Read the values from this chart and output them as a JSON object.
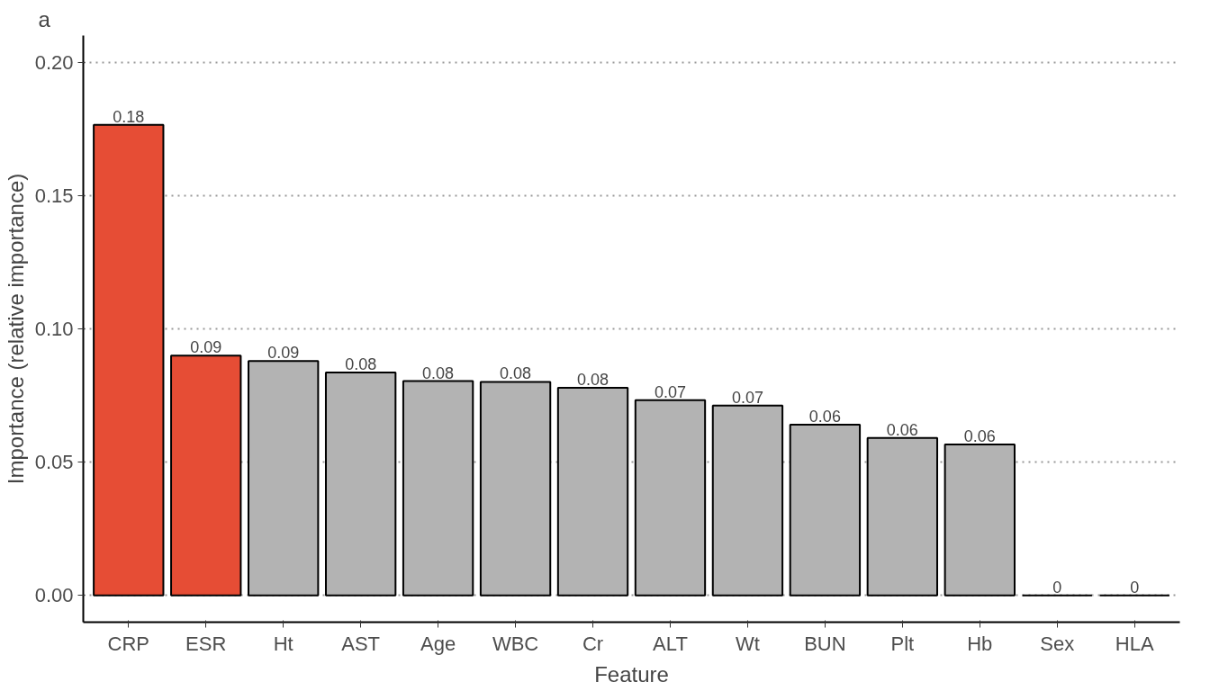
{
  "chart_data": {
    "type": "bar",
    "title": "a",
    "xlabel": "Feature",
    "ylabel": "Importance (relative importance)",
    "categories": [
      "CRP",
      "ESR",
      "Ht",
      "AST",
      "Age",
      "WBC",
      "Cr",
      "ALT",
      "Wt",
      "BUN",
      "Plt",
      "Hb",
      "Sex",
      "HLA"
    ],
    "values": [
      0.1765,
      0.09,
      0.0879,
      0.0836,
      0.0804,
      0.0801,
      0.0779,
      0.0733,
      0.0712,
      0.0641,
      0.0591,
      0.0566,
      0,
      0
    ],
    "colors": [
      "#e64d35",
      "#e64d35",
      "#b3b3b3",
      "#b3b3b3",
      "#b3b3b3",
      "#b3b3b3",
      "#b3b3b3",
      "#b3b3b3",
      "#b3b3b3",
      "#b3b3b3",
      "#b3b3b3",
      "#b3b3b3",
      "#000000",
      "#000000"
    ],
    "value_labels": [
      "0.18",
      "0.09",
      "0.09",
      "0.08",
      "0.08",
      "0.08",
      "0.08",
      "0.07",
      "0.07",
      "0.06",
      "0.06",
      "0.06",
      "0",
      "0"
    ],
    "ylim": [
      -0.01,
      0.21
    ],
    "yticks": [
      {
        "value": 0,
        "label": "0.00"
      },
      {
        "value": 0.05,
        "label": "0.05"
      },
      {
        "value": 0.1,
        "label": "0.10"
      },
      {
        "value": 0.15,
        "label": "0.15"
      },
      {
        "value": 0.2,
        "label": "0.20"
      }
    ],
    "grid": "y"
  }
}
